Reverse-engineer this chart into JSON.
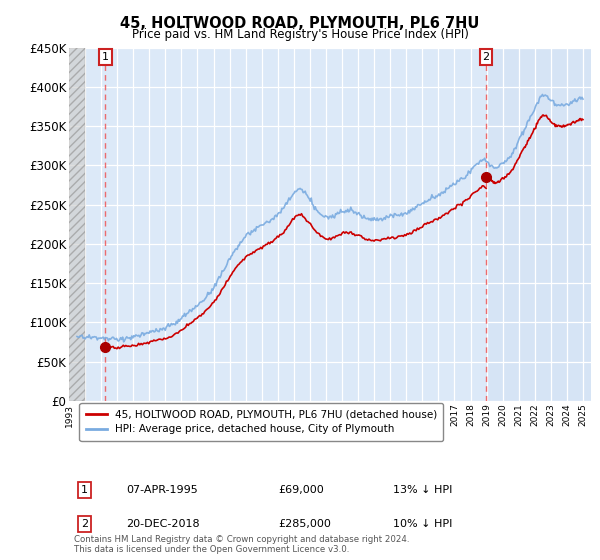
{
  "title": "45, HOLTWOOD ROAD, PLYMOUTH, PL6 7HU",
  "subtitle": "Price paid vs. HM Land Registry's House Price Index (HPI)",
  "sale1_date": 1995.27,
  "sale1_price": 69000,
  "sale1_label": "07-APR-1995",
  "sale1_amount": "£69,000",
  "sale1_hpi": "13% ↓ HPI",
  "sale2_date": 2018.97,
  "sale2_price": 285000,
  "sale2_label": "20-DEC-2018",
  "sale2_amount": "£285,000",
  "sale2_hpi": "10% ↓ HPI",
  "ylim": [
    0,
    450000
  ],
  "xlim": [
    1993.0,
    2025.5
  ],
  "ylabel_ticks": [
    0,
    50000,
    100000,
    150000,
    200000,
    250000,
    300000,
    350000,
    400000,
    450000
  ],
  "ylabel_labels": [
    "£0",
    "£50K",
    "£100K",
    "£150K",
    "£200K",
    "£250K",
    "£300K",
    "£350K",
    "£400K",
    "£450K"
  ],
  "legend1": "45, HOLTWOOD ROAD, PLYMOUTH, PL6 7HU (detached house)",
  "legend2": "HPI: Average price, detached house, City of Plymouth",
  "footer": "Contains HM Land Registry data © Crown copyright and database right 2024.\nThis data is licensed under the Open Government Licence v3.0.",
  "background_color": "#dce9f8",
  "grid_color": "#ffffff",
  "red_line_color": "#cc0000",
  "blue_line_color": "#7aabe0",
  "sale_marker_color": "#aa0000",
  "hatch_color": "#c8c8c8"
}
